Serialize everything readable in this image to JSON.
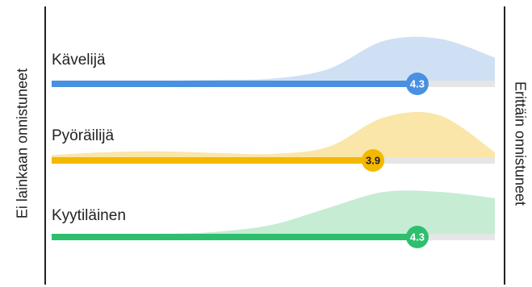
{
  "chart_data": {
    "type": "area",
    "title": "",
    "scale_min_label": "Ei lainkaan onnistuneet",
    "scale_max_label": "Erittäin onnistuneet",
    "xlim": [
      1,
      5
    ],
    "grid": false,
    "legend": "none",
    "series": [
      {
        "name": "Kävelijä",
        "color": "#4a90e2",
        "fill": "#cfe0f5",
        "mean": 4.3,
        "mean_label": "4.3",
        "distribution_x": [
          1,
          2,
          2.5,
          3,
          3.5,
          4,
          4.5,
          5
        ],
        "distribution_y": [
          0,
          0,
          0.02,
          0.05,
          0.28,
          0.95,
          1.0,
          0.55
        ]
      },
      {
        "name": "Pyöräilijä",
        "color": "#f5b800",
        "fill": "#fbe6a9",
        "mean": 3.9,
        "mean_label": "3.9",
        "distribution_x": [
          1,
          1.5,
          2,
          2.5,
          3,
          3.5,
          4,
          4.5,
          5
        ],
        "distribution_y": [
          0.05,
          0.12,
          0.14,
          0.1,
          0.08,
          0.25,
          0.95,
          1.0,
          0.12
        ]
      },
      {
        "name": "Kyytiläinen",
        "color": "#2ebf6e",
        "fill": "#c6ecd3",
        "mean": 4.3,
        "mean_label": "4.3",
        "distribution_x": [
          1,
          2,
          2.5,
          3,
          3.5,
          4,
          4.5,
          5
        ],
        "distribution_y": [
          0,
          0,
          0.05,
          0.22,
          0.62,
          1.0,
          1.0,
          0.85
        ]
      }
    ]
  }
}
